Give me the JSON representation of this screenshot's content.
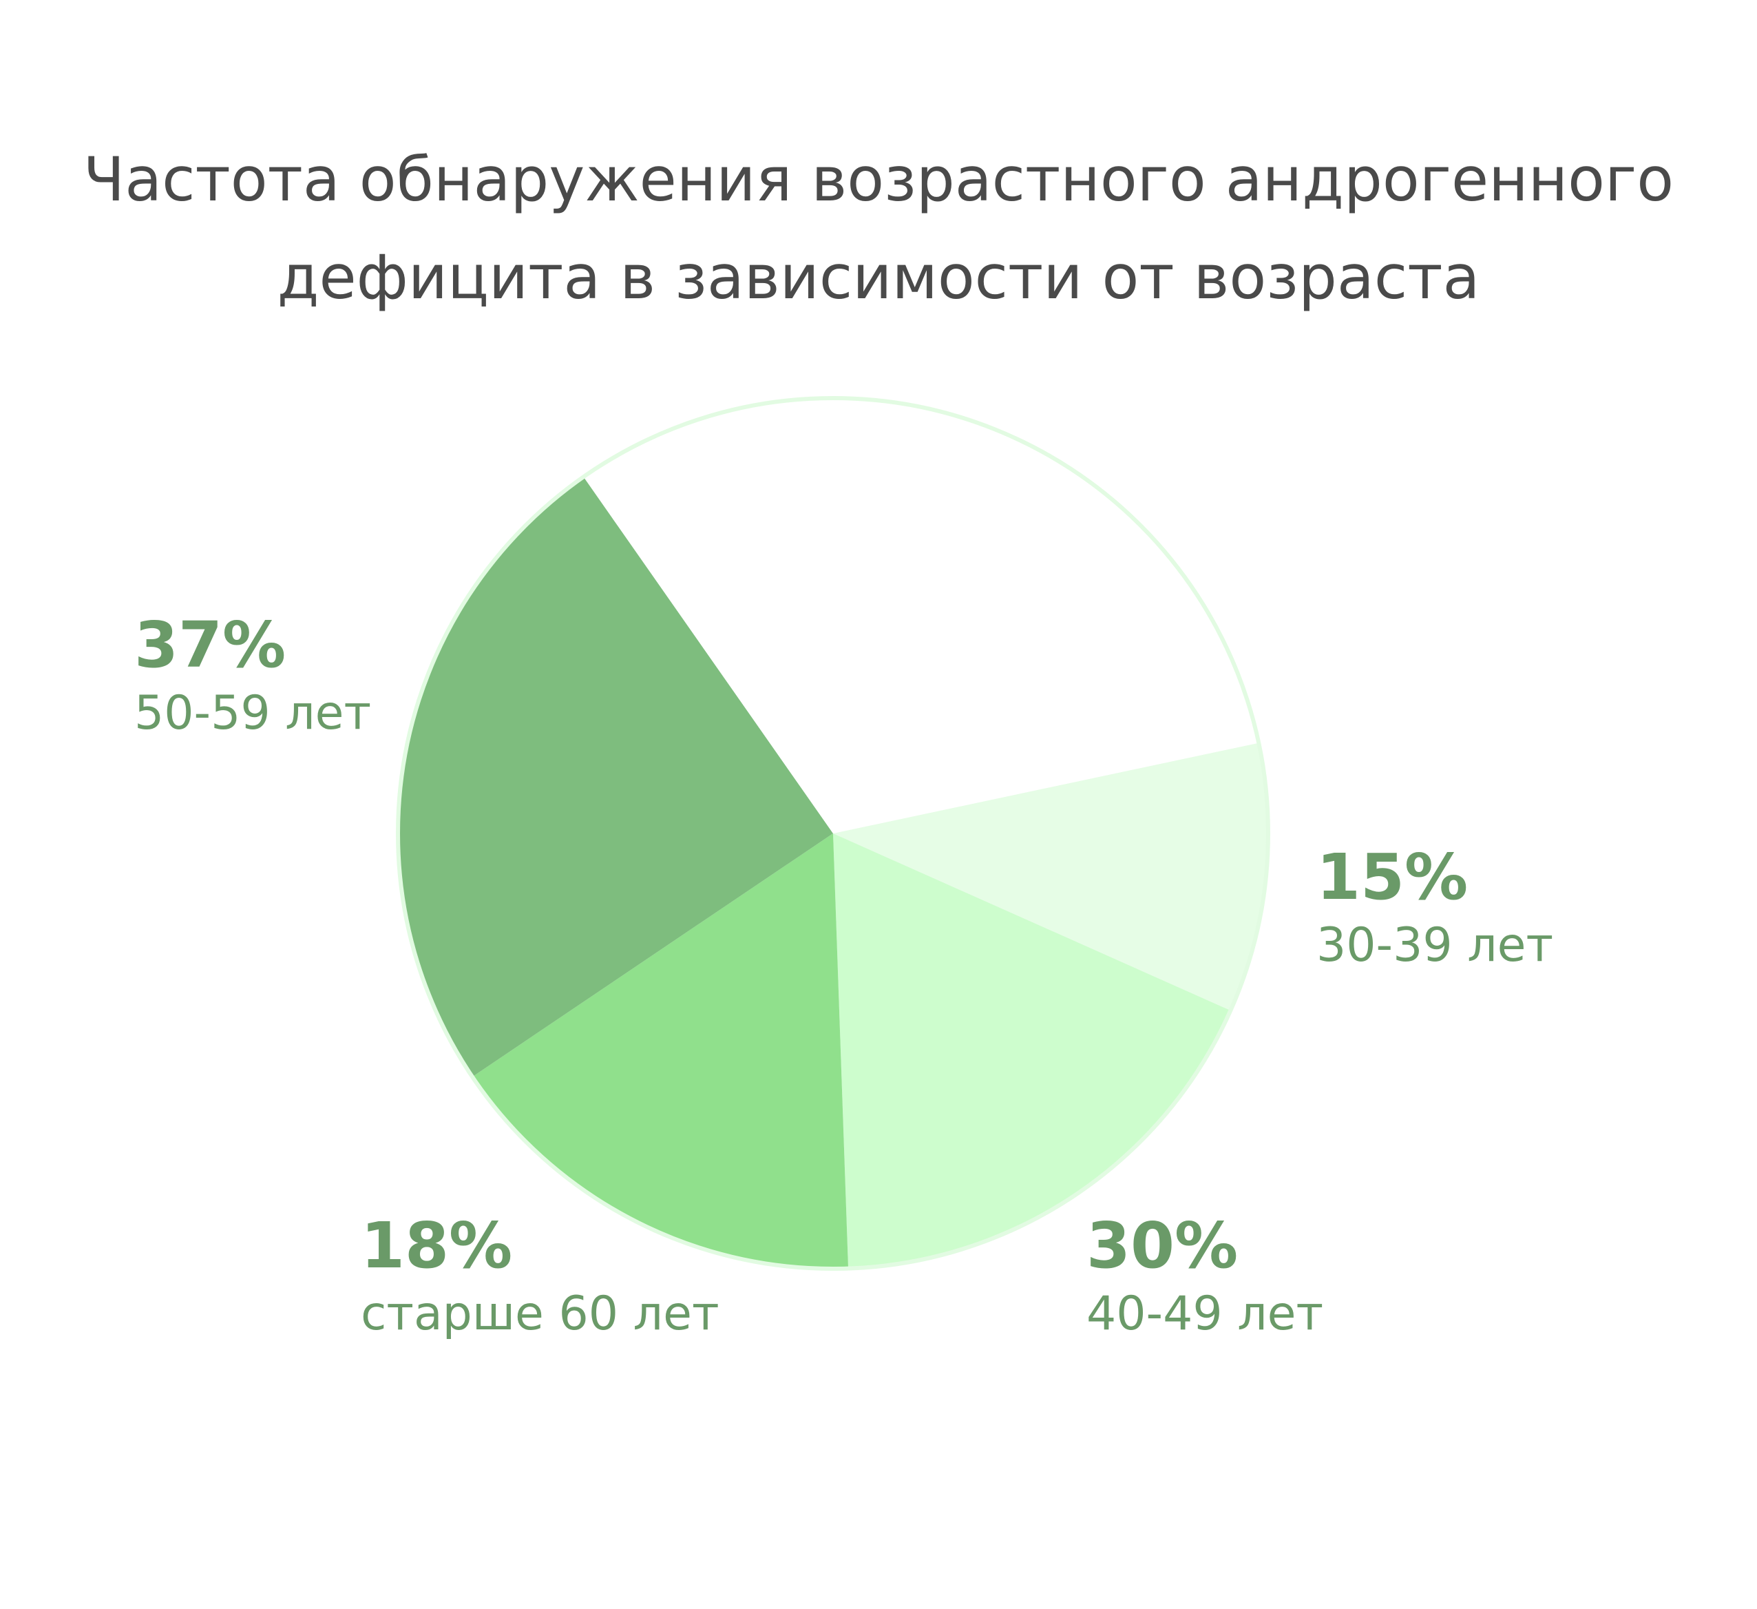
{
  "chart_data": {
    "type": "pie",
    "title": "Частота обнаружения возрастного андрогенного дефицита в зависимости от возраста",
    "title_lines": [
      "Частота обнаружения возрастного андрогенного",
      "дефицита в зависимости от возраста"
    ],
    "slices": [
      {
        "label": "30-39 лет",
        "value": 15,
        "value_label": "15%",
        "color": "#e6fde6"
      },
      {
        "label": "40-49 лет",
        "value": 30,
        "value_label": "30%",
        "color": "#cdfdcd"
      },
      {
        "label": "старше 60 лет",
        "value": 18,
        "value_label": "18%",
        "color": "#90e08c"
      },
      {
        "label": "50-59 лет",
        "value": 37,
        "value_label": "37%",
        "color": "#7ebd7e"
      },
      {
        "label": "",
        "value": null,
        "value_label": "",
        "color": "#ffffff"
      }
    ],
    "label_color": "#6a9a68",
    "outline_color": "#e2fbe2",
    "legend": "none"
  }
}
